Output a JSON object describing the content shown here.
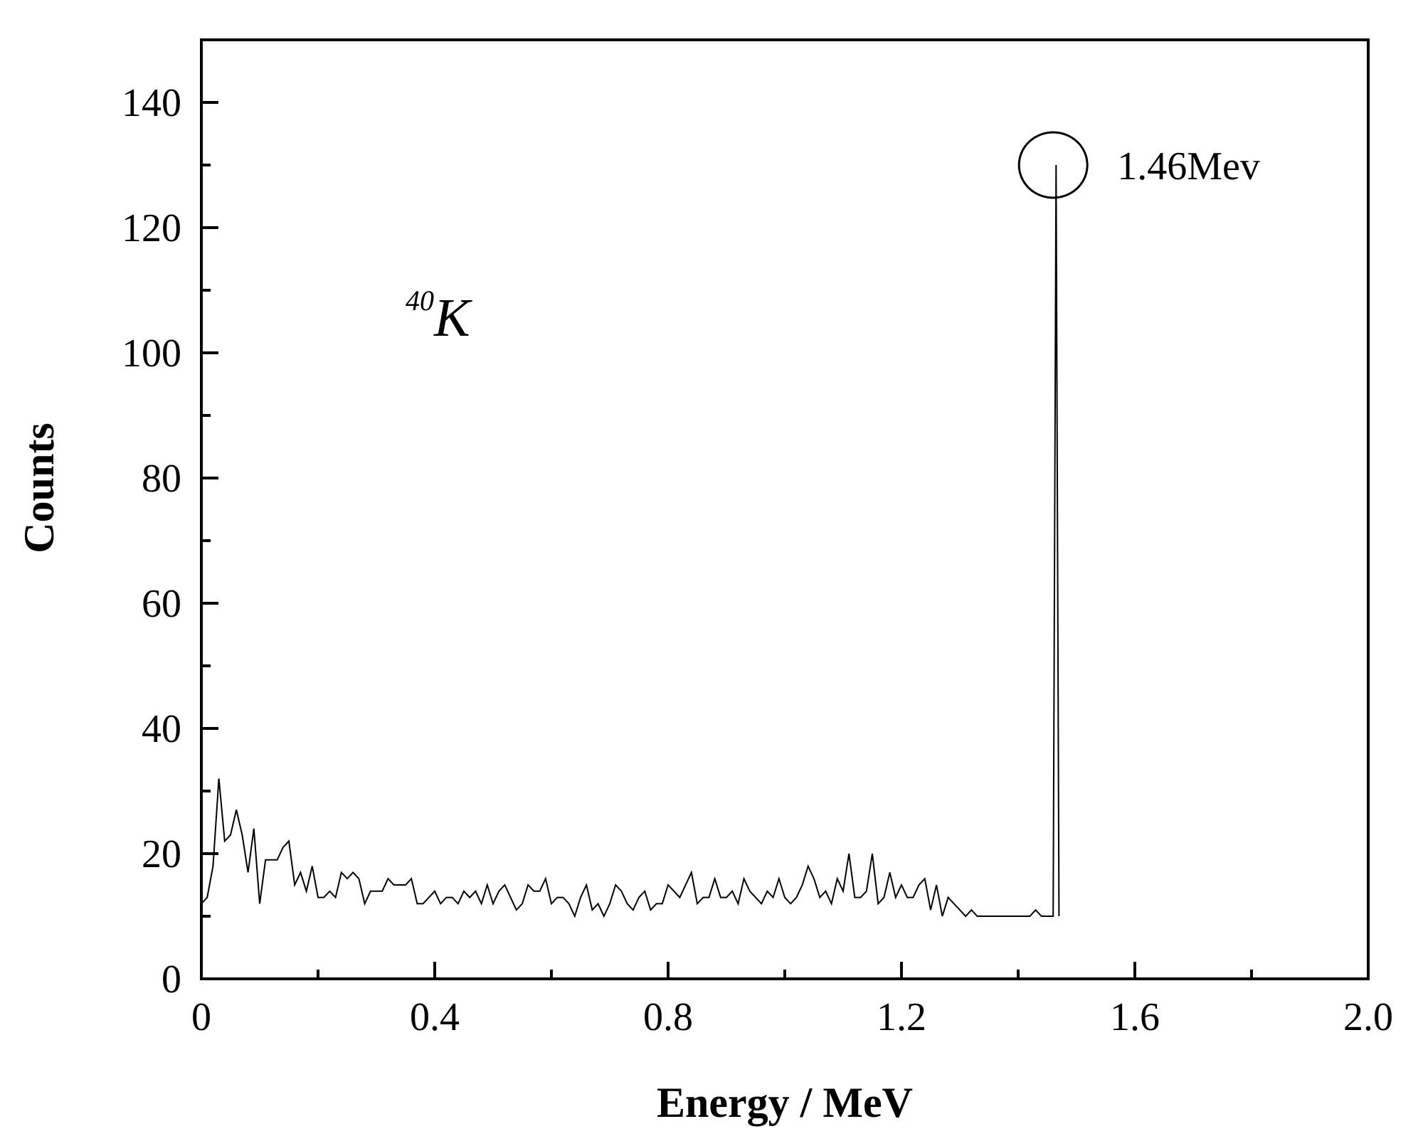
{
  "chart_data": {
    "type": "line",
    "title": "",
    "xlabel": "Energy / MeV",
    "ylabel": "Counts",
    "xlim": [
      0,
      2.0
    ],
    "ylim": [
      0,
      150
    ],
    "x_ticks": [
      0,
      0.4,
      0.8,
      1.2,
      1.6,
      2.0
    ],
    "x_tick_labels": [
      "0",
      "0.4",
      "0.8",
      "1.2",
      "1.6",
      "2.0"
    ],
    "y_ticks": [
      0,
      20,
      40,
      60,
      80,
      100,
      120,
      140
    ],
    "y_tick_labels": [
      "0",
      "20",
      "40",
      "60",
      "80",
      "100",
      "120",
      "140"
    ],
    "grid": false,
    "legend": "none",
    "line_color": "#000000",
    "annotations": {
      "isotope_mass": "40",
      "isotope_symbol": "K",
      "peak_label": "1.46Mev",
      "peak_x": 1.46,
      "peak_y": 130
    },
    "series": [
      {
        "x": [
          0.0,
          0.01,
          0.02,
          0.03,
          0.04,
          0.05,
          0.06,
          0.07,
          0.08,
          0.09,
          0.1,
          0.11,
          0.12,
          0.13,
          0.14,
          0.15,
          0.16,
          0.17,
          0.18,
          0.19,
          0.2,
          0.21,
          0.22,
          0.23,
          0.24,
          0.25,
          0.26,
          0.27,
          0.28,
          0.29,
          0.3,
          0.31,
          0.32,
          0.33,
          0.34,
          0.35,
          0.36,
          0.37,
          0.38,
          0.39,
          0.4,
          0.41,
          0.42,
          0.43,
          0.44,
          0.45,
          0.46,
          0.47,
          0.48,
          0.49,
          0.5,
          0.51,
          0.52,
          0.53,
          0.54,
          0.55,
          0.56,
          0.57,
          0.58,
          0.59,
          0.6,
          0.61,
          0.62,
          0.63,
          0.64,
          0.65,
          0.66,
          0.67,
          0.68,
          0.69,
          0.7,
          0.71,
          0.72,
          0.73,
          0.74,
          0.75,
          0.76,
          0.77,
          0.78,
          0.79,
          0.8,
          0.81,
          0.82,
          0.83,
          0.84,
          0.85,
          0.86,
          0.87,
          0.88,
          0.89,
          0.9,
          0.91,
          0.92,
          0.93,
          0.94,
          0.95,
          0.96,
          0.97,
          0.98,
          0.99,
          1.0,
          1.01,
          1.02,
          1.03,
          1.04,
          1.05,
          1.06,
          1.07,
          1.08,
          1.09,
          1.1,
          1.11,
          1.12,
          1.13,
          1.14,
          1.15,
          1.16,
          1.17,
          1.18,
          1.19,
          1.2,
          1.21,
          1.22,
          1.23,
          1.24,
          1.25,
          1.26,
          1.27,
          1.28,
          1.29,
          1.3,
          1.31,
          1.32,
          1.33,
          1.34,
          1.35,
          1.4,
          1.42,
          1.43,
          1.44,
          1.45,
          1.46,
          1.465,
          1.47
        ],
        "values": [
          12,
          13,
          18,
          32,
          22,
          23,
          27,
          23,
          17,
          24,
          12,
          19,
          19,
          19,
          21,
          22,
          15,
          17,
          14,
          18,
          13,
          13,
          14,
          13,
          17,
          16,
          17,
          16,
          12,
          14,
          14,
          14,
          16,
          15,
          15,
          15,
          16,
          12,
          12,
          13,
          14,
          12,
          13,
          13,
          12,
          14,
          13,
          14,
          12,
          15,
          12,
          14,
          15,
          13,
          11,
          12,
          15,
          14,
          14,
          16,
          12,
          13,
          13,
          12,
          10,
          13,
          15,
          11,
          12,
          10,
          12,
          15,
          14,
          12,
          11,
          13,
          14,
          11,
          12,
          12,
          15,
          14,
          13,
          15,
          17,
          12,
          13,
          13,
          16,
          13,
          13,
          14,
          12,
          16,
          14,
          13,
          12,
          14,
          13,
          16,
          13,
          12,
          13,
          15,
          18,
          16,
          13,
          14,
          12,
          16,
          14,
          20,
          13,
          13,
          14,
          20,
          12,
          13,
          17,
          13,
          15,
          13,
          13,
          15,
          16,
          11,
          15,
          10,
          13,
          12,
          11,
          10,
          11,
          10,
          10,
          10,
          10,
          10,
          11,
          10,
          10,
          10,
          130,
          10
        ]
      }
    ]
  }
}
